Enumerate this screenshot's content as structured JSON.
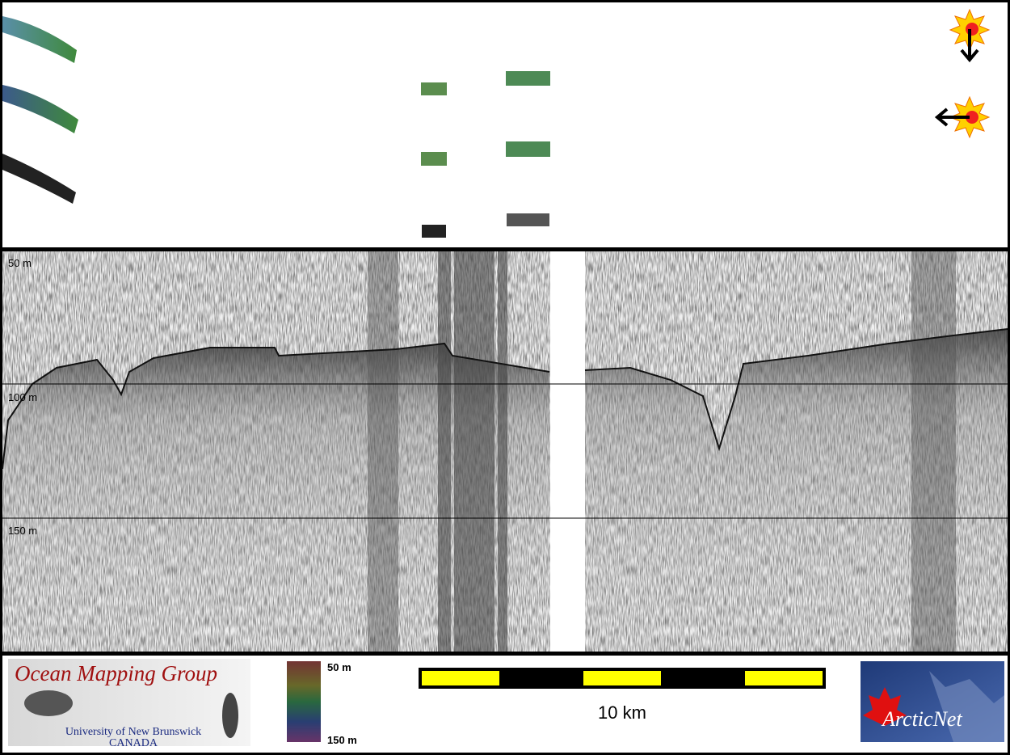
{
  "profile": {
    "depth_labels": [
      "50 m",
      "100 m",
      "150 m"
    ]
  },
  "legend": {
    "colorbar": {
      "top_label": "50 m",
      "bottom_label": "150 m"
    },
    "scale_bar": {
      "label": "10 km"
    }
  },
  "logos": {
    "omg": {
      "title": "Ocean Mapping Group",
      "line1": "University of New Brunswick",
      "line2": "CANADA"
    },
    "arcticnet": {
      "text": "ArcticNet"
    }
  }
}
